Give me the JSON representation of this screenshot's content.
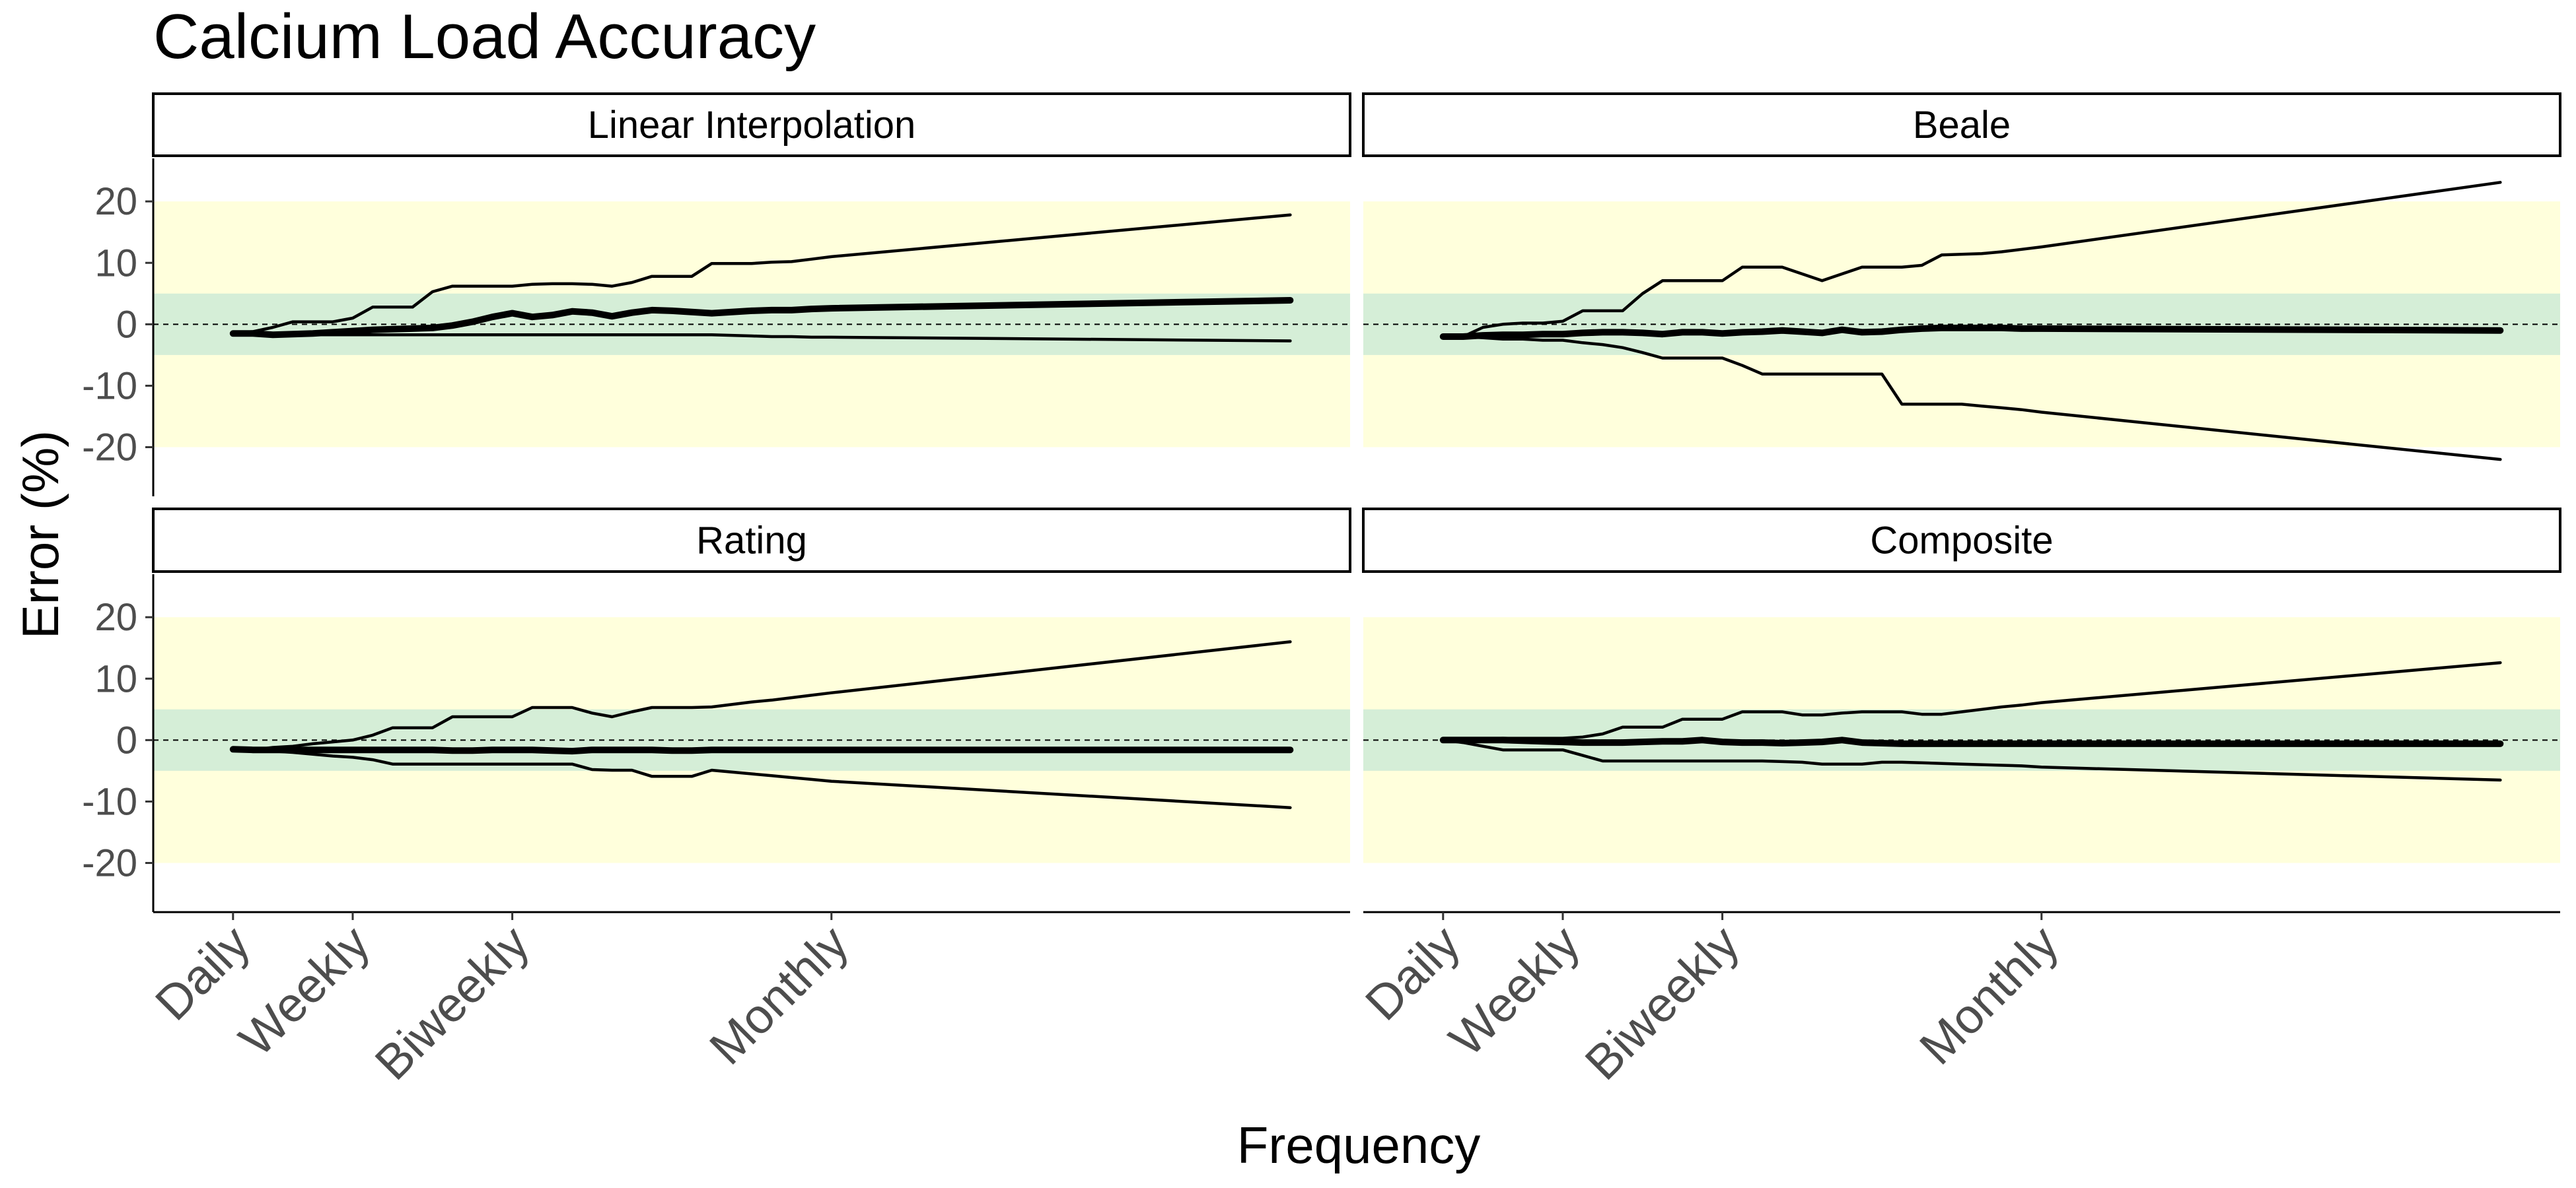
{
  "chart_data": {
    "type": "line",
    "title": "Calcium Load Accuracy",
    "xlabel": "Frequency",
    "ylabel": "Error (%)",
    "ylim": [
      -28,
      27
    ],
    "y_ticks": [
      -20,
      -10,
      0,
      10,
      20
    ],
    "x_ticks": [
      {
        "label": "Daily",
        "x": 1
      },
      {
        "label": "Weekly",
        "x": 7
      },
      {
        "label": "Biweekly",
        "x": 15
      },
      {
        "label": "Monthly",
        "x": 31
      }
    ],
    "xlim": [
      -3,
      57
    ],
    "bands": [
      {
        "y0": -20,
        "y1": 20,
        "color": "#ffffdc"
      },
      {
        "y0": -5,
        "y1": 5,
        "color": "#d5eed7"
      }
    ],
    "reference_line": 0,
    "line_color": "#000000",
    "panels": [
      {
        "name": "Linear Interpolation",
        "upper": {
          "x": [
            1,
            2,
            3,
            4,
            5,
            6,
            7,
            8,
            9,
            10,
            11,
            12,
            13,
            14,
            15,
            16,
            17,
            18,
            19,
            20,
            21,
            22,
            23,
            24,
            25,
            26,
            27,
            28,
            29,
            30,
            31,
            54
          ],
          "y": [
            -1.4,
            -1.2,
            -0.5,
            0.4,
            0.4,
            0.4,
            1.0,
            2.8,
            2.8,
            2.8,
            5.3,
            6.2,
            6.2,
            6.2,
            6.2,
            6.5,
            6.6,
            6.6,
            6.5,
            6.2,
            6.8,
            7.8,
            7.8,
            7.8,
            9.9,
            9.9,
            9.9,
            10.1,
            10.2,
            10.6,
            11.0,
            17.8
          ]
        },
        "median": {
          "x": [
            1,
            2,
            3,
            4,
            5,
            6,
            7,
            8,
            9,
            10,
            11,
            12,
            13,
            14,
            15,
            16,
            17,
            18,
            19,
            20,
            21,
            22,
            23,
            24,
            25,
            26,
            27,
            28,
            29,
            30,
            31,
            54
          ],
          "y": [
            -1.5,
            -1.5,
            -1.7,
            -1.6,
            -1.5,
            -1.3,
            -1.1,
            -0.9,
            -0.8,
            -0.7,
            -0.6,
            -0.2,
            0.4,
            1.2,
            1.8,
            1.2,
            1.5,
            2.1,
            1.9,
            1.3,
            1.9,
            2.3,
            2.2,
            2.0,
            1.8,
            2.0,
            2.2,
            2.3,
            2.3,
            2.5,
            2.6,
            3.9
          ]
        },
        "lower": {
          "x": [
            1,
            2,
            3,
            4,
            5,
            6,
            7,
            8,
            9,
            10,
            11,
            12,
            13,
            14,
            15,
            16,
            17,
            18,
            19,
            20,
            21,
            22,
            23,
            24,
            25,
            26,
            27,
            28,
            29,
            30,
            31,
            54
          ],
          "y": [
            -1.5,
            -1.6,
            -1.7,
            -1.7,
            -1.7,
            -1.7,
            -1.7,
            -1.7,
            -1.7,
            -1.7,
            -1.7,
            -1.7,
            -1.7,
            -1.7,
            -1.7,
            -1.7,
            -1.7,
            -1.7,
            -1.7,
            -1.7,
            -1.7,
            -1.7,
            -1.7,
            -1.7,
            -1.7,
            -1.8,
            -1.9,
            -2.0,
            -2.0,
            -2.1,
            -2.1,
            -2.7
          ]
        }
      },
      {
        "name": "Beale",
        "upper": {
          "x": [
            1,
            2,
            3,
            4,
            5,
            6,
            7,
            8,
            9,
            10,
            11,
            12,
            13,
            14,
            15,
            16,
            17,
            18,
            19,
            20,
            21,
            22,
            23,
            24,
            25,
            26,
            27,
            28,
            29,
            30,
            31,
            54
          ],
          "y": [
            -2.0,
            -2.0,
            -0.5,
            0.0,
            0.2,
            0.2,
            0.5,
            2.2,
            2.2,
            2.2,
            5.0,
            7.1,
            7.1,
            7.1,
            7.1,
            9.3,
            9.3,
            9.3,
            8.2,
            7.1,
            8.2,
            9.3,
            9.3,
            9.3,
            9.6,
            11.3,
            11.4,
            11.5,
            11.8,
            12.2,
            12.6,
            23.1
          ]
        },
        "median": {
          "x": [
            1,
            2,
            3,
            4,
            5,
            6,
            7,
            8,
            9,
            10,
            11,
            12,
            13,
            14,
            15,
            16,
            17,
            18,
            19,
            20,
            21,
            22,
            23,
            24,
            25,
            26,
            27,
            28,
            29,
            30,
            31,
            54
          ],
          "y": [
            -2.0,
            -2.0,
            -1.8,
            -1.7,
            -1.7,
            -1.6,
            -1.6,
            -1.4,
            -1.3,
            -1.3,
            -1.4,
            -1.6,
            -1.3,
            -1.3,
            -1.5,
            -1.3,
            -1.2,
            -1.0,
            -1.2,
            -1.4,
            -0.9,
            -1.3,
            -1.2,
            -0.9,
            -0.7,
            -0.6,
            -0.6,
            -0.6,
            -0.6,
            -0.7,
            -0.7,
            -1.0
          ]
        },
        "lower": {
          "x": [
            1,
            2,
            3,
            4,
            5,
            6,
            7,
            8,
            9,
            10,
            11,
            12,
            13,
            14,
            15,
            16,
            17,
            18,
            19,
            20,
            21,
            22,
            23,
            24,
            25,
            26,
            27,
            28,
            29,
            30,
            31,
            54
          ],
          "y": [
            -2.0,
            -2.0,
            -2.2,
            -2.4,
            -2.4,
            -2.6,
            -2.6,
            -3.0,
            -3.3,
            -3.8,
            -4.6,
            -5.5,
            -5.5,
            -5.5,
            -5.5,
            -6.7,
            -8.1,
            -8.1,
            -8.1,
            -8.1,
            -8.1,
            -8.1,
            -8.1,
            -13.0,
            -13.0,
            -13.0,
            -13.0,
            -13.3,
            -13.6,
            -13.9,
            -14.3,
            -22.0
          ]
        }
      },
      {
        "name": "Rating",
        "upper": {
          "x": [
            1,
            2,
            3,
            4,
            5,
            6,
            7,
            8,
            9,
            10,
            11,
            12,
            13,
            14,
            15,
            16,
            17,
            18,
            19,
            20,
            21,
            22,
            23,
            24,
            25,
            26,
            27,
            28,
            29,
            30,
            31,
            54
          ],
          "y": [
            -1.6,
            -1.6,
            -1.2,
            -1.0,
            -0.6,
            -0.3,
            0.0,
            0.8,
            2.0,
            2.0,
            2.0,
            3.8,
            3.8,
            3.8,
            3.8,
            5.3,
            5.3,
            5.3,
            4.4,
            3.8,
            4.6,
            5.3,
            5.3,
            5.3,
            5.4,
            5.8,
            6.2,
            6.5,
            6.9,
            7.3,
            7.7,
            16.0
          ]
        },
        "median": {
          "x": [
            1,
            2,
            3,
            4,
            5,
            6,
            7,
            8,
            9,
            10,
            11,
            12,
            13,
            14,
            15,
            16,
            17,
            18,
            19,
            20,
            21,
            22,
            23,
            24,
            25,
            26,
            27,
            28,
            29,
            30,
            31,
            54
          ],
          "y": [
            -1.5,
            -1.6,
            -1.6,
            -1.6,
            -1.6,
            -1.6,
            -1.6,
            -1.6,
            -1.6,
            -1.6,
            -1.6,
            -1.7,
            -1.7,
            -1.6,
            -1.6,
            -1.6,
            -1.7,
            -1.8,
            -1.6,
            -1.6,
            -1.6,
            -1.6,
            -1.7,
            -1.7,
            -1.6,
            -1.6,
            -1.6,
            -1.6,
            -1.6,
            -1.6,
            -1.6,
            -1.6
          ]
        },
        "lower": {
          "x": [
            1,
            2,
            3,
            4,
            5,
            6,
            7,
            8,
            9,
            10,
            11,
            12,
            13,
            14,
            15,
            16,
            17,
            18,
            19,
            20,
            21,
            22,
            23,
            24,
            25,
            26,
            27,
            28,
            29,
            30,
            31,
            54
          ],
          "y": [
            -1.5,
            -1.6,
            -1.8,
            -2.0,
            -2.3,
            -2.6,
            -2.8,
            -3.2,
            -3.9,
            -3.9,
            -3.9,
            -3.9,
            -3.9,
            -3.9,
            -3.9,
            -3.9,
            -3.9,
            -3.9,
            -4.8,
            -4.9,
            -4.9,
            -5.9,
            -5.9,
            -5.9,
            -4.9,
            -5.2,
            -5.5,
            -5.8,
            -6.1,
            -6.4,
            -6.7,
            -11.0
          ]
        }
      },
      {
        "name": "Composite",
        "upper": {
          "x": [
            1,
            2,
            3,
            4,
            5,
            6,
            7,
            8,
            9,
            10,
            11,
            12,
            13,
            14,
            15,
            16,
            17,
            18,
            19,
            20,
            21,
            22,
            23,
            24,
            25,
            26,
            27,
            28,
            29,
            30,
            31,
            54
          ],
          "y": [
            0.0,
            0.1,
            0.2,
            0.3,
            0.3,
            0.3,
            0.3,
            0.5,
            1.0,
            2.1,
            2.1,
            2.1,
            3.4,
            3.4,
            3.4,
            4.6,
            4.6,
            4.6,
            4.1,
            4.1,
            4.4,
            4.6,
            4.6,
            4.6,
            4.2,
            4.2,
            4.6,
            5.0,
            5.4,
            5.7,
            6.1,
            12.6
          ]
        },
        "median": {
          "x": [
            1,
            2,
            3,
            4,
            5,
            6,
            7,
            8,
            9,
            10,
            11,
            12,
            13,
            14,
            15,
            16,
            17,
            18,
            19,
            20,
            21,
            22,
            23,
            24,
            25,
            26,
            27,
            28,
            29,
            30,
            31,
            54
          ],
          "y": [
            0.0,
            0.0,
            0.0,
            0.0,
            -0.1,
            -0.2,
            -0.3,
            -0.4,
            -0.4,
            -0.4,
            -0.3,
            -0.2,
            -0.2,
            0.0,
            -0.3,
            -0.4,
            -0.4,
            -0.5,
            -0.4,
            -0.3,
            0.0,
            -0.4,
            -0.5,
            -0.6,
            -0.6,
            -0.6,
            -0.6,
            -0.6,
            -0.6,
            -0.6,
            -0.6,
            -0.6
          ]
        },
        "lower": {
          "x": [
            1,
            2,
            3,
            4,
            5,
            6,
            7,
            8,
            9,
            10,
            11,
            12,
            13,
            14,
            15,
            16,
            17,
            18,
            19,
            20,
            21,
            22,
            23,
            24,
            25,
            26,
            27,
            28,
            29,
            30,
            31,
            54
          ],
          "y": [
            0.0,
            -0.4,
            -1.0,
            -1.6,
            -1.6,
            -1.6,
            -1.6,
            -2.5,
            -3.4,
            -3.4,
            -3.4,
            -3.4,
            -3.4,
            -3.4,
            -3.4,
            -3.4,
            -3.4,
            -3.5,
            -3.6,
            -3.9,
            -3.9,
            -3.9,
            -3.6,
            -3.6,
            -3.7,
            -3.8,
            -3.9,
            -4.0,
            -4.1,
            -4.2,
            -4.4,
            -6.5
          ]
        }
      }
    ]
  }
}
